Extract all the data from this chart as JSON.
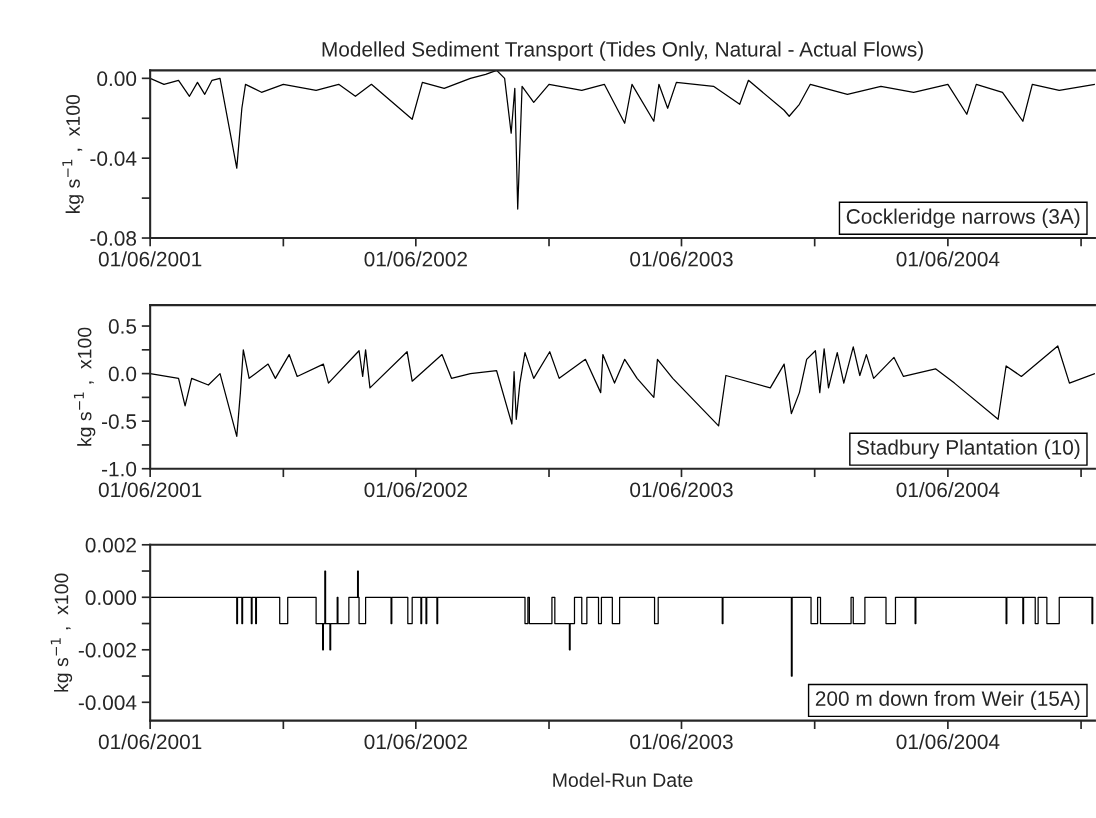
{
  "chart_data": [
    {
      "type": "line",
      "title": "Modelled Sediment Transport (Tides Only, Natural - Actual Flows)",
      "ylabel": "kg s$^{−1}$ ,  x100",
      "annotations": [
        "Cockleridge narrows (3A)"
      ],
      "xlim": [
        "2001-06-01",
        "2004-12-20"
      ],
      "xticks": [
        {
          "value": "2001-06-01",
          "label": "01/06/2001"
        },
        {
          "value": "2001-12-01",
          "label": null
        },
        {
          "value": "2002-06-01",
          "label": "01/06/2002"
        },
        {
          "value": "2002-12-01",
          "label": null
        },
        {
          "value": "2003-06-01",
          "label": "01/06/2003"
        },
        {
          "value": "2003-12-01",
          "label": null
        },
        {
          "value": "2004-06-01",
          "label": "01/06/2004"
        },
        {
          "value": "2004-12-01",
          "label": null
        }
      ],
      "ylim": [
        -0.08,
        0.004
      ],
      "yticks": [
        {
          "value": 0,
          "label": "0.00"
        },
        {
          "value": -0.02,
          "label": null
        },
        {
          "value": -0.04,
          "label": "-0.04"
        },
        {
          "value": -0.06,
          "label": null
        },
        {
          "value": -0.08,
          "label": "-0.08"
        }
      ],
      "series": [
        {
          "color": "#000000",
          "x": [
            "2001-06-01",
            "2001-06-20",
            "2001-07-10",
            "2001-07-25",
            "2001-08-05",
            "2001-08-15",
            "2001-08-25",
            "2001-09-05",
            "2001-09-28",
            "2001-10-05",
            "2001-10-10",
            "2001-11-01",
            "2001-12-01",
            "2002-01-15",
            "2002-02-15",
            "2002-03-10",
            "2002-04-01",
            "2002-05-27",
            "2002-06-10",
            "2002-07-10",
            "2002-08-15",
            "2002-09-05",
            "2002-09-20",
            "2002-10-01",
            "2002-10-10",
            "2002-10-15",
            "2002-10-19",
            "2002-10-25",
            "2002-11-10",
            "2002-12-01",
            "2003-01-15",
            "2003-02-15",
            "2003-03-15",
            "2003-03-25",
            "2003-04-24",
            "2003-05-01",
            "2003-05-13",
            "2003-05-25",
            "2003-07-15",
            "2003-08-20",
            "2003-09-01",
            "2003-10-20",
            "2003-10-27",
            "2003-11-10",
            "2003-11-25",
            "2004-01-15",
            "2004-03-01",
            "2004-04-15",
            "2004-06-01",
            "2004-06-27",
            "2004-07-10",
            "2004-08-15",
            "2004-09-12",
            "2004-09-25",
            "2004-11-01",
            "2004-12-20"
          ],
          "values": [
            0,
            -0.003,
            -0.001,
            -0.009,
            -0.002,
            -0.008,
            -0.001,
            0,
            -0.045,
            -0.015,
            -0.003,
            -0.007,
            -0.003,
            -0.006,
            -0.003,
            -0.009,
            -0.003,
            -0.0205,
            -0.002,
            -0.005,
            0,
            0.002,
            0.004,
            0,
            -0.0275,
            -0.005,
            -0.0655,
            -0.004,
            -0.012,
            -0.003,
            -0.006,
            -0.003,
            -0.0225,
            -0.003,
            -0.0215,
            -0.003,
            -0.015,
            -0.002,
            -0.004,
            -0.013,
            -0.001,
            -0.016,
            -0.019,
            -0.013,
            -0.003,
            -0.008,
            -0.004,
            -0.007,
            -0.003,
            -0.018,
            -0.003,
            -0.007,
            -0.0215,
            -0.003,
            -0.006,
            -0.003
          ]
        }
      ]
    },
    {
      "type": "line",
      "ylabel": "kg s$^{−1}$ ,  x100",
      "annotations": [
        "Stadbury Plantation (10)"
      ],
      "xlim": [
        "2001-06-01",
        "2004-12-20"
      ],
      "xticks": [
        {
          "value": "2001-06-01",
          "label": "01/06/2001"
        },
        {
          "value": "2001-12-01",
          "label": null
        },
        {
          "value": "2002-06-01",
          "label": "01/06/2002"
        },
        {
          "value": "2002-12-01",
          "label": null
        },
        {
          "value": "2003-06-01",
          "label": "01/06/2003"
        },
        {
          "value": "2003-12-01",
          "label": null
        },
        {
          "value": "2004-06-01",
          "label": "01/06/2004"
        },
        {
          "value": "2004-12-01",
          "label": null
        }
      ],
      "ylim": [
        -1.0,
        0.72
      ],
      "yticks": [
        {
          "value": 0.5,
          "label": "0.5"
        },
        {
          "value": 0.25,
          "label": null
        },
        {
          "value": 0,
          "label": "0.0"
        },
        {
          "value": -0.25,
          "label": null
        },
        {
          "value": -0.5,
          "label": "-0.5"
        },
        {
          "value": -0.75,
          "label": null
        },
        {
          "value": -1.0,
          "label": "-1.0"
        }
      ],
      "series": [
        {
          "color": "#000000",
          "x": [
            "2001-06-01",
            "2001-07-10",
            "2001-07-19",
            "2001-07-28",
            "2001-08-20",
            "2001-09-05",
            "2001-09-28",
            "2001-10-03",
            "2001-10-07",
            "2001-10-15",
            "2001-11-10",
            "2001-11-20",
            "2001-12-09",
            "2001-12-20",
            "2002-01-25",
            "2002-02-01",
            "2002-03-15",
            "2002-03-20",
            "2002-03-24",
            "2002-03-30",
            "2002-05-20",
            "2002-05-27",
            "2002-07-07",
            "2002-07-20",
            "2002-08-15",
            "2002-09-20",
            "2002-10-11",
            "2002-10-14",
            "2002-10-17",
            "2002-10-22",
            "2002-10-29",
            "2002-11-10",
            "2002-12-02",
            "2002-12-15",
            "2003-01-20",
            "2003-02-10",
            "2003-02-13",
            "2003-03-01",
            "2003-03-15",
            "2003-04-01",
            "2003-04-24",
            "2003-04-29",
            "2003-05-20",
            "2003-07-22",
            "2003-08-01",
            "2003-10-01",
            "2003-10-20",
            "2003-10-30",
            "2003-11-10",
            "2003-11-20",
            "2003-12-02",
            "2003-12-08",
            "2003-12-14",
            "2003-12-20",
            "2004-01-01",
            "2004-01-10",
            "2004-01-23",
            "2004-02-01",
            "2004-02-10",
            "2004-02-20",
            "2004-03-19",
            "2004-04-01",
            "2004-05-15",
            "2004-06-10",
            "2004-08-09",
            "2004-08-20",
            "2004-09-10",
            "2004-10-30",
            "2004-11-15",
            "2004-12-20"
          ],
          "values": [
            0,
            -0.05,
            -0.34,
            -0.05,
            -0.12,
            0,
            -0.66,
            -0.2,
            0.25,
            -0.05,
            0.1,
            -0.05,
            0.2,
            -0.03,
            0.1,
            -0.1,
            0.24,
            -0.03,
            0.25,
            -0.15,
            0.23,
            -0.08,
            0.2,
            -0.05,
            0,
            0.03,
            -0.53,
            0.02,
            -0.48,
            -0.1,
            0.22,
            -0.05,
            0.23,
            -0.05,
            0.15,
            -0.2,
            0.2,
            -0.1,
            0.15,
            -0.05,
            -0.25,
            0.15,
            -0.05,
            -0.55,
            -0.02,
            -0.15,
            0.1,
            -0.42,
            -0.2,
            0.15,
            0.24,
            -0.2,
            0.26,
            -0.15,
            0.22,
            -0.1,
            0.28,
            -0.02,
            0.2,
            -0.05,
            0.17,
            -0.03,
            0.05,
            -0.1,
            -0.48,
            0.08,
            -0.03,
            0.29,
            -0.1,
            0
          ]
        }
      ]
    },
    {
      "type": "step",
      "ylabel": "kg s$^{−1}$ ,  x100",
      "xlabel": "Model-Run Date",
      "annotations": [
        "200 m down from Weir (15A)"
      ],
      "xlim": [
        "2001-06-01",
        "2004-12-20"
      ],
      "xticks": [
        {
          "value": "2001-06-01",
          "label": "01/06/2001"
        },
        {
          "value": "2001-12-01",
          "label": null
        },
        {
          "value": "2002-06-01",
          "label": "01/06/2002"
        },
        {
          "value": "2002-12-01",
          "label": null
        },
        {
          "value": "2003-06-01",
          "label": "01/06/2003"
        },
        {
          "value": "2003-12-01",
          "label": null
        },
        {
          "value": "2004-06-01",
          "label": "01/06/2004"
        },
        {
          "value": "2004-12-01",
          "label": null
        }
      ],
      "ylim": [
        -0.0047,
        0.002
      ],
      "yticks": [
        {
          "value": 0.002,
          "label": "0.002"
        },
        {
          "value": 0.001,
          "label": null
        },
        {
          "value": 0,
          "label": "0.000"
        },
        {
          "value": -0.001,
          "label": null
        },
        {
          "value": -0.002,
          "label": "-0.002"
        },
        {
          "value": -0.003,
          "label": null
        },
        {
          "value": -0.004,
          "label": "-0.004"
        }
      ],
      "series": [
        {
          "color": "#000000",
          "x": [
            "2001-06-01",
            "2001-09-28",
            "2001-09-29",
            "2001-10-05",
            "2001-10-06",
            "2001-10-18",
            "2001-10-19",
            "2001-10-24",
            "2001-10-25",
            "2001-11-26",
            "2001-12-07",
            "2002-01-15",
            "2002-01-24",
            "2002-01-25",
            "2002-01-27",
            "2002-01-28",
            "2002-02-03",
            "2002-02-04",
            "2002-02-13",
            "2002-02-14",
            "2002-03-01",
            "2002-03-13",
            "2002-03-14",
            "2002-03-15",
            "2002-03-24",
            "2002-04-28",
            "2002-04-29",
            "2002-05-21",
            "2002-05-27",
            "2002-06-08",
            "2002-06-09",
            "2002-06-15",
            "2002-06-16",
            "2002-06-30",
            "2002-07-01",
            "2002-10-29",
            "2002-11-02",
            "2002-11-04",
            "2002-12-05",
            "2002-12-09",
            "2002-12-29",
            "2002-12-30",
            "2003-01-05",
            "2003-01-15",
            "2003-01-22",
            "2003-02-07",
            "2003-02-11",
            "2003-02-26",
            "2003-03-08",
            "2003-04-25",
            "2003-04-30",
            "2003-07-27",
            "2003-07-28",
            "2003-10-30",
            "2003-10-31",
            "2003-11-26",
            "2003-12-05",
            "2003-12-09",
            "2004-01-20",
            "2004-01-23",
            "2004-02-08",
            "2004-03-08",
            "2004-03-21",
            "2004-04-17",
            "2004-04-18",
            "2004-08-20",
            "2004-08-21",
            "2004-09-12",
            "2004-09-13",
            "2004-09-29",
            "2004-10-03",
            "2004-10-15",
            "2004-11-01",
            "2004-12-16",
            "2004-12-17"
          ],
          "values": [
            0,
            -0.001,
            0,
            -0.001,
            0,
            -0.001,
            0,
            -0.001,
            0,
            -0.001,
            0,
            -0.001,
            -0.002,
            -0.001,
            0.001,
            -0.001,
            -0.002,
            -0.001,
            0,
            -0.001,
            0,
            0.001,
            0,
            -0.001,
            0,
            -0.001,
            0,
            -0.001,
            0,
            -0.001,
            0,
            -0.001,
            0,
            -0.001,
            0,
            -0.001,
            0,
            -0.001,
            0,
            -0.001,
            -0.002,
            -0.001,
            0,
            -0.001,
            0,
            -0.001,
            0,
            -0.001,
            0,
            -0.001,
            0,
            -0.001,
            0,
            -0.003,
            0,
            -0.001,
            0,
            -0.001,
            0,
            -0.001,
            0,
            -0.001,
            0,
            -0.001,
            0,
            -0.001,
            0,
            -0.001,
            0,
            -0.001,
            0,
            -0.001,
            0,
            -0.001,
            0
          ]
        }
      ]
    }
  ]
}
